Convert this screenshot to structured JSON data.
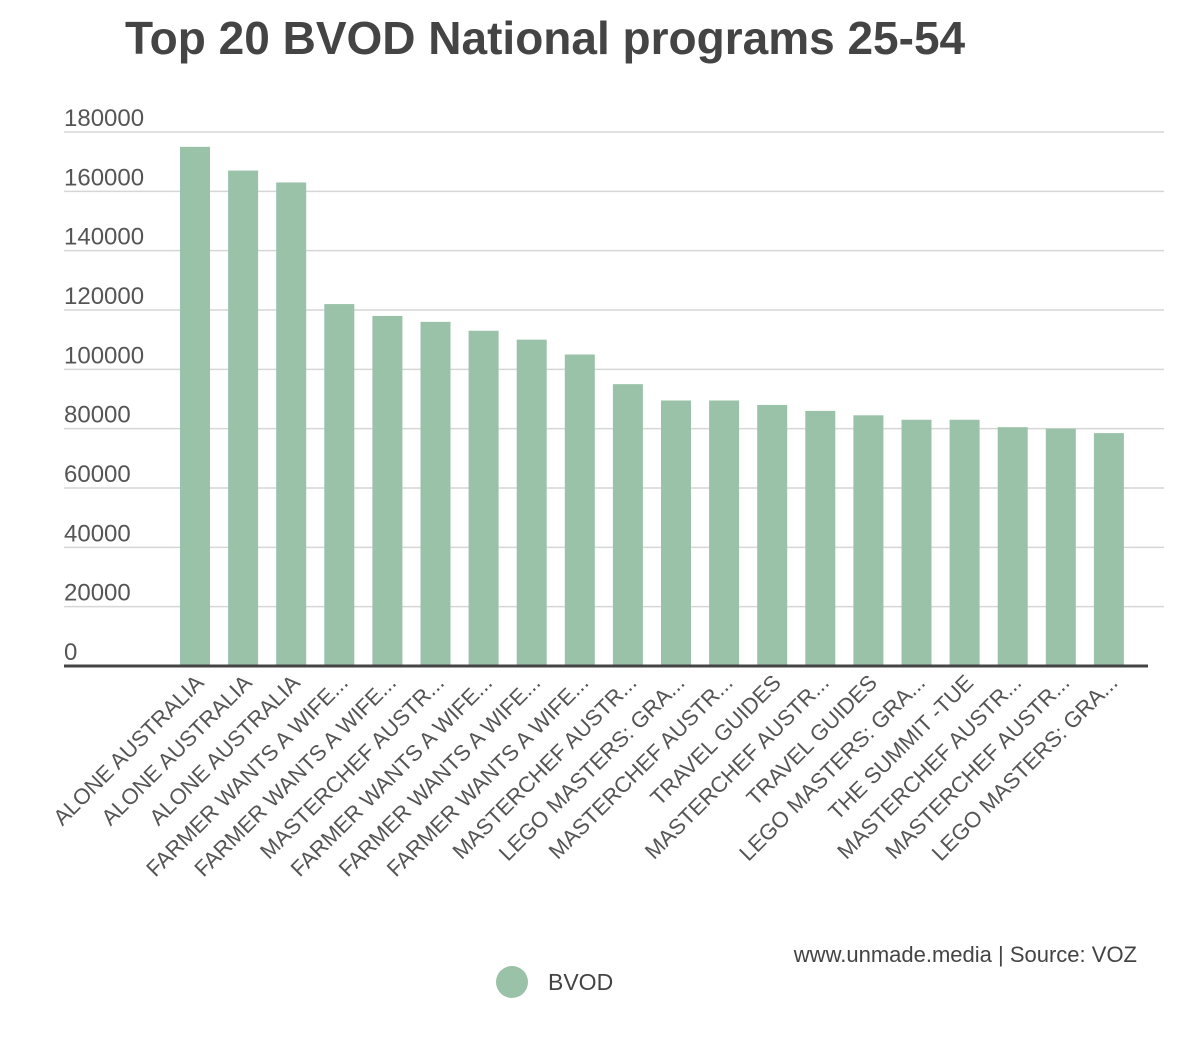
{
  "chart_data": {
    "type": "bar",
    "title": "Top 20 BVOD National programs 25-54",
    "xlabel": "",
    "ylabel": "",
    "ylim": [
      0,
      180000
    ],
    "yticks": [
      0,
      20000,
      40000,
      60000,
      80000,
      100000,
      120000,
      140000,
      160000,
      180000
    ],
    "grid": true,
    "legend_position": "bottom",
    "categories": [
      "ALONE AUSTRALIA",
      "ALONE AUSTRALIA",
      "ALONE AUSTRALIA",
      "FARMER WANTS A WIFE...",
      "FARMER WANTS A WIFE...",
      "MASTERCHEF AUSTR...",
      "FARMER WANTS A WIFE...",
      "FARMER WANTS A WIFE...",
      "FARMER WANTS A WIFE...",
      "MASTERCHEF AUSTR...",
      "LEGO MASTERS: GRA...",
      "MASTERCHEF AUSTR...",
      "TRAVEL GUIDES",
      "MASTERCHEF AUSTR...",
      "TRAVEL GUIDES",
      "LEGO MASTERS: GRA...",
      "THE SUMMIT -TUE",
      "MASTERCHEF AUSTR...",
      "MASTERCHEF AUSTR...",
      "LEGO MASTERS: GRA..."
    ],
    "series": [
      {
        "name": "BVOD",
        "color": "#99c2a8",
        "values": [
          175000,
          167000,
          163000,
          122000,
          118000,
          116000,
          113000,
          110000,
          105000,
          95000,
          89500,
          89500,
          88000,
          86000,
          84500,
          83000,
          83000,
          80500,
          80000,
          78500
        ]
      }
    ]
  },
  "footer": {
    "source": "www.unmade.media | Source: VOZ"
  }
}
